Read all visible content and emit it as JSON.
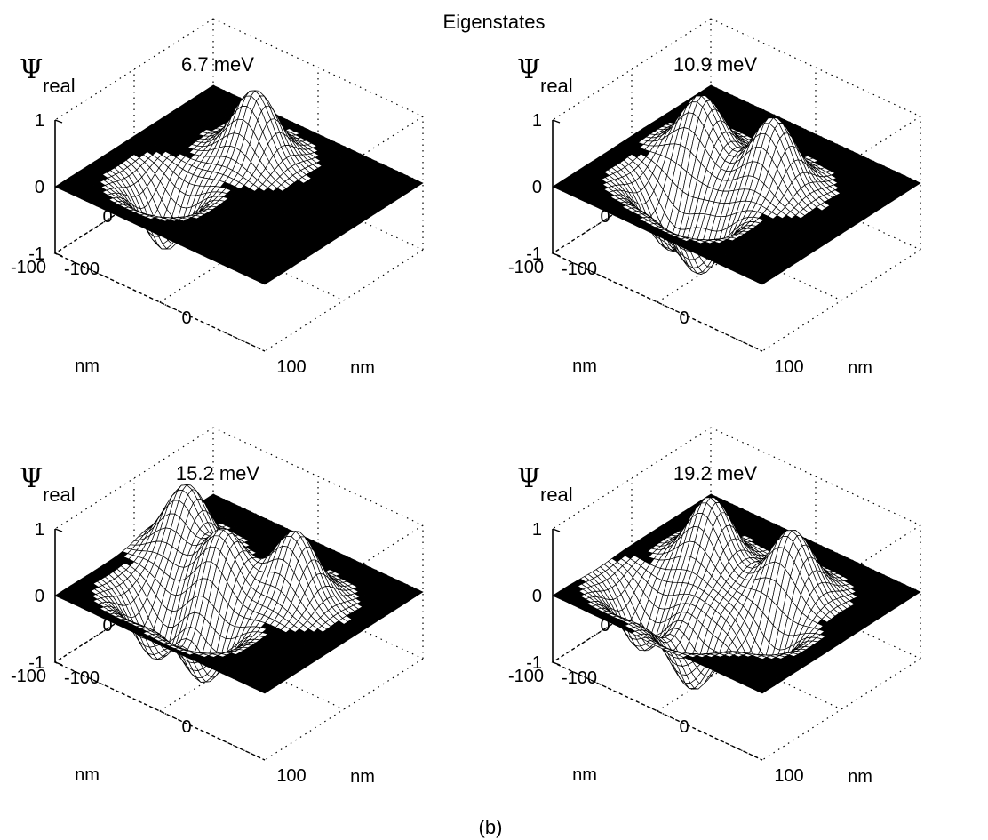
{
  "figure": {
    "title": "Eigenstates",
    "caption": "(b)"
  },
  "chart_data": [
    {
      "type": "surface",
      "energy_label": "6.7 meV",
      "zlabel": "Ψ",
      "zlabel_sub": "real",
      "xlabel": "nm",
      "ylabel": "nm",
      "zticks": [
        "1",
        "0",
        "-1"
      ],
      "yticks": [
        "100",
        "0",
        "-100"
      ],
      "xticks": [
        "-100",
        "0",
        "100"
      ],
      "xlim": [
        -100,
        100
      ],
      "ylim": [
        -100,
        100
      ],
      "zlim": [
        -1,
        1
      ],
      "lobes": [
        {
          "x": -15,
          "y": 40,
          "amp": 1.0
        },
        {
          "x": -40,
          "y": -40,
          "amp": -0.95
        }
      ]
    },
    {
      "type": "surface",
      "energy_label": "10.9 meV",
      "zlabel": "Ψ",
      "zlabel_sub": "real",
      "xlabel": "nm",
      "ylabel": "nm",
      "zticks": [
        "1",
        "0",
        "-1"
      ],
      "yticks": [
        "100",
        "0",
        "-100"
      ],
      "xticks": [
        "-100",
        "0",
        "100"
      ],
      "xlim": [
        -100,
        100
      ],
      "ylim": [
        -100,
        100
      ],
      "zlim": [
        -1,
        1
      ],
      "lobes": [
        {
          "x": -45,
          "y": 15,
          "amp": 0.9
        },
        {
          "x": 20,
          "y": 20,
          "amp": 1.0
        },
        {
          "x": -40,
          "y": -35,
          "amp": -0.9
        },
        {
          "x": 0,
          "y": -45,
          "amp": -0.95
        }
      ]
    },
    {
      "type": "surface",
      "energy_label": "15.2 meV",
      "zlabel": "Ψ",
      "zlabel_sub": "real",
      "xlabel": "nm",
      "ylabel": "nm",
      "zticks": [
        "1",
        "0",
        "-1"
      ],
      "yticks": [
        "100",
        "0",
        "-100"
      ],
      "xticks": [
        "-100",
        "0",
        "100"
      ],
      "xlim": [
        -100,
        100
      ],
      "ylim": [
        -100,
        100
      ],
      "zlim": [
        -1,
        1
      ],
      "lobes": [
        {
          "x": -65,
          "y": 20,
          "amp": 1.0
        },
        {
          "x": -15,
          "y": 0,
          "amp": 0.85
        },
        {
          "x": 35,
          "y": 25,
          "amp": 1.0
        },
        {
          "x": -45,
          "y": -45,
          "amp": -0.95
        },
        {
          "x": 5,
          "y": -50,
          "amp": -0.9
        }
      ]
    },
    {
      "type": "surface",
      "energy_label": "19.2 meV",
      "zlabel": "Ψ",
      "zlabel_sub": "real",
      "xlabel": "nm",
      "ylabel": "nm",
      "zticks": [
        "1",
        "0",
        "-1"
      ],
      "yticks": [
        "100",
        "0",
        "-100"
      ],
      "xticks": [
        "-100",
        "0",
        "100"
      ],
      "xlim": [
        -100,
        100
      ],
      "ylim": [
        -100,
        100
      ],
      "zlim": [
        -1,
        1
      ],
      "lobes": [
        {
          "x": -40,
          "y": 20,
          "amp": 1.0
        },
        {
          "x": 30,
          "y": 30,
          "amp": 0.95
        },
        {
          "x": -55,
          "y": -45,
          "amp": -0.9
        },
        {
          "x": 0,
          "y": -55,
          "amp": -1.0
        },
        {
          "x": 40,
          "y": -20,
          "amp": -0.85
        }
      ]
    }
  ]
}
